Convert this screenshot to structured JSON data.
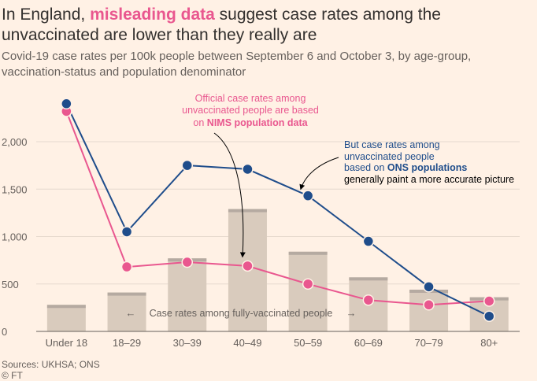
{
  "title": {
    "prefix": "In England, ",
    "highlight": "misleading data",
    "suffix": " suggest case rates among the unvaccinated are lower than they really are"
  },
  "subtitle": "Covid-19 case rates per 100k people between September 6 and October 3, by age-group, vaccination-status and population denominator",
  "chart_data": {
    "type": "bar",
    "categories": [
      "Under 18",
      "18–29",
      "30–39",
      "40–49",
      "50–59",
      "60–69",
      "70–79",
      "80+"
    ],
    "ylim": [
      0,
      2400
    ],
    "yticks": [
      0,
      500,
      1000,
      1500,
      2000
    ],
    "ytick_labels": [
      "0",
      "500",
      "1,000",
      "1,500",
      "2,000"
    ],
    "grid": true,
    "series": [
      {
        "kind": "bar",
        "values": [
          280,
          410,
          770,
          1290,
          840,
          570,
          440,
          360
        ],
        "color": "#d9cbbd",
        "cap_color": "#b5aaa1"
      },
      {
        "kind": "line",
        "values": [
          2320,
          680,
          730,
          690,
          500,
          330,
          280,
          320
        ],
        "color": "#e9578f"
      },
      {
        "kind": "line",
        "values": [
          2400,
          1050,
          1750,
          1710,
          1430,
          950,
          470,
          160
        ],
        "color": "#1f4d8b"
      }
    ],
    "annotations": {
      "nims": {
        "line1": "Official case rates among",
        "line2": "unvaccinated people are based",
        "line3_prefix": "on ",
        "line3_bold": "NIMS population data"
      },
      "ons": {
        "line1": "But case rates among",
        "line2": "unvaccinated people",
        "line3_prefix": "based on ",
        "line3_bold": "ONS populations",
        "line4": "generally paint a more accurate picture"
      },
      "bars": {
        "left_arrow": "←",
        "text": "Case rates among fully-vaccinated people",
        "right_arrow": "→"
      }
    }
  },
  "footer": {
    "sources": "Sources: UKHSA; ONS",
    "credit": "© FT"
  }
}
